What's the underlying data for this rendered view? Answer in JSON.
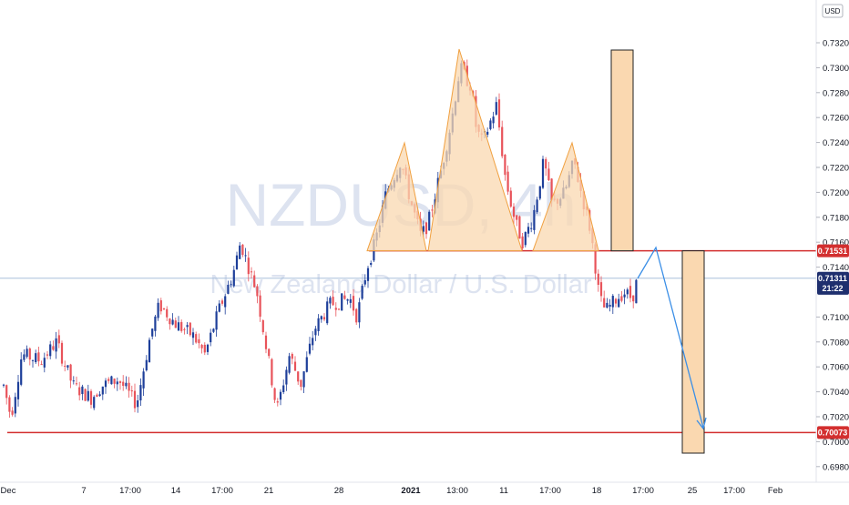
{
  "chart_data": {
    "type": "candlestick",
    "symbol_watermark": "NZDUSD, 4h",
    "description_watermark": "New Zealand Dollar / U.S. Dollar",
    "currency": "USD",
    "ylim": [
      0.697,
      0.7345
    ],
    "y_ticks": [
      "0.73200",
      "0.73000",
      "0.72800",
      "0.72600",
      "0.72400",
      "0.72200",
      "0.72000",
      "0.71800",
      "0.71600",
      "0.71400",
      "0.71000",
      "0.70800",
      "0.70600",
      "0.70400",
      "0.70200",
      "0.70000",
      "0.69800"
    ],
    "x_ticks": [
      {
        "label": "Dec",
        "bold": false
      },
      {
        "label": "7",
        "bold": false
      },
      {
        "label": "17:00",
        "bold": false
      },
      {
        "label": "14",
        "bold": false
      },
      {
        "label": "17:00",
        "bold": false
      },
      {
        "label": "21",
        "bold": false
      },
      {
        "label": "28",
        "bold": false
      },
      {
        "label": "2021",
        "bold": true
      },
      {
        "label": "13:00",
        "bold": false
      },
      {
        "label": "11",
        "bold": false
      },
      {
        "label": "17:00",
        "bold": false
      },
      {
        "label": "18",
        "bold": false
      },
      {
        "label": "17:00",
        "bold": false
      },
      {
        "label": "25",
        "bold": false
      },
      {
        "label": "17:00",
        "bold": false
      },
      {
        "label": "Feb",
        "bold": false
      }
    ],
    "price_tags": [
      {
        "label": "0.71531",
        "value": 0.71531,
        "color": "#d32f2f"
      },
      {
        "label": "0.71311",
        "value": 0.71311,
        "color": "#1e2f6e"
      },
      {
        "label": "21:22",
        "value": 0.7123,
        "color": "#1e2f6e"
      },
      {
        "label": "0.70073",
        "value": 0.70073,
        "color": "#d32f2f"
      }
    ],
    "horizontal_lines": [
      {
        "name": "neckline",
        "value": 0.71531,
        "color": "#d32f2f"
      },
      {
        "name": "support",
        "value": 0.70073,
        "color": "#d32f2f"
      },
      {
        "name": "current-price",
        "value": 0.71311,
        "color": "#9db7d6"
      }
    ],
    "pattern": "head-and-shoulders",
    "candle_colors": {
      "up": "#1e3f9a",
      "down": "#e8535a"
    },
    "accent_colors": {
      "shape_fill": "#fad8b0",
      "shape_stroke": "#f0a040",
      "projection": "#3a8ee6"
    }
  }
}
